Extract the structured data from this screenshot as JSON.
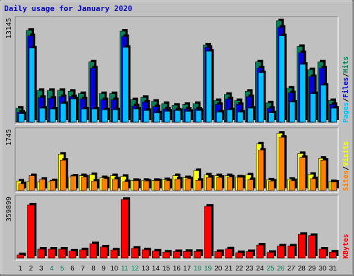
{
  "title": "Daily usage for January 2020",
  "colors": {
    "background": "#c0c0c0",
    "panel": "#c0c0c0",
    "hits": "#00805c",
    "files": "#0000d8",
    "pages": "#00c0ff",
    "visits": "#ffff00",
    "sites": "#ff8000",
    "kbytes": "#ff0000",
    "weekend_day": "#00805c",
    "weekday": "#000000",
    "title": "#0000c0"
  },
  "legend": {
    "top": [
      {
        "label": "Pages",
        "color": "#00c0ff"
      },
      {
        "label": "/",
        "color": "#000000"
      },
      {
        "label": "Files",
        "color": "#0000d8"
      },
      {
        "label": "/",
        "color": "#000000"
      },
      {
        "label": "Hits",
        "color": "#00805c"
      }
    ],
    "middle": [
      {
        "label": "Sites",
        "color": "#ff8000"
      },
      {
        "label": "/",
        "color": "#000000"
      },
      {
        "label": "Visits",
        "color": "#ffff00"
      }
    ],
    "bottom": [
      {
        "label": "KBytes",
        "color": "#ff0000"
      }
    ]
  },
  "chart_data": [
    {
      "type": "bar",
      "panel": "top",
      "y_max_label": "13145",
      "ylim": [
        0,
        13145
      ],
      "categories": [
        "1",
        "2",
        "3",
        "4",
        "5",
        "6",
        "7",
        "8",
        "9",
        "10",
        "11",
        "12",
        "13",
        "14",
        "15",
        "16",
        "17",
        "18",
        "19",
        "20",
        "21",
        "22",
        "23",
        "24",
        "25",
        "26",
        "27",
        "28",
        "29",
        "30",
        "31"
      ],
      "series": [
        {
          "name": "Hits",
          "values": [
            1800,
            11900,
            4100,
            4100,
            4100,
            4000,
            3700,
            7800,
            3700,
            3700,
            11800,
            2900,
            3200,
            2700,
            2400,
            2200,
            2300,
            2400,
            10000,
            2800,
            3600,
            2800,
            4000,
            7800,
            2500,
            13145,
            4400,
            9800,
            6800,
            7800,
            2800
          ]
        },
        {
          "name": "Files",
          "values": [
            1300,
            11200,
            3200,
            3100,
            3300,
            3300,
            3000,
            7000,
            2900,
            2900,
            11100,
            2100,
            2600,
            2000,
            1700,
            1600,
            1700,
            1700,
            9700,
            2300,
            3000,
            2300,
            3300,
            7000,
            1800,
            12300,
            3800,
            9000,
            5900,
            7000,
            2300
          ]
        },
        {
          "name": "Pages",
          "values": [
            1100,
            9600,
            1800,
            1700,
            2400,
            3000,
            1700,
            1700,
            1600,
            1600,
            9700,
            1700,
            1500,
            1200,
            1400,
            1500,
            1400,
            1500,
            9200,
            1300,
            1600,
            1300,
            1800,
            6400,
            1200,
            11200,
            2600,
            7500,
            3700,
            4800,
            1800
          ]
        }
      ]
    },
    {
      "type": "bar",
      "panel": "middle",
      "y_max_label": "1745",
      "ylim": [
        0,
        1745
      ],
      "categories": [
        "1",
        "2",
        "3",
        "4",
        "5",
        "6",
        "7",
        "8",
        "9",
        "10",
        "11",
        "12",
        "13",
        "14",
        "15",
        "16",
        "17",
        "18",
        "19",
        "20",
        "21",
        "22",
        "23",
        "24",
        "25",
        "26",
        "27",
        "28",
        "29",
        "30",
        "31"
      ],
      "series": [
        {
          "name": "Visits",
          "values": [
            280,
            260,
            250,
            250,
            1080,
            400,
            440,
            470,
            380,
            440,
            420,
            300,
            300,
            300,
            320,
            440,
            380,
            590,
            460,
            440,
            440,
            400,
            460,
            1380,
            310,
            1700,
            330,
            1100,
            480,
            960,
            260
          ]
        },
        {
          "name": "Sites",
          "values": [
            200,
            440,
            330,
            290,
            900,
            430,
            400,
            280,
            350,
            340,
            260,
            290,
            280,
            290,
            290,
            340,
            350,
            300,
            390,
            390,
            400,
            390,
            320,
            1200,
            280,
            1580,
            290,
            980,
            350,
            900,
            250
          ]
        }
      ]
    },
    {
      "type": "bar",
      "panel": "bottom",
      "y_max_label": "359899",
      "ylim": [
        0,
        359899
      ],
      "categories": [
        "1",
        "2",
        "3",
        "4",
        "5",
        "6",
        "7",
        "8",
        "9",
        "10",
        "11",
        "12",
        "13",
        "14",
        "15",
        "16",
        "17",
        "18",
        "19",
        "20",
        "21",
        "22",
        "23",
        "24",
        "25",
        "26",
        "27",
        "28",
        "29",
        "30",
        "31"
      ],
      "series": [
        {
          "name": "KBytes",
          "values": [
            20000,
            326000,
            55000,
            55000,
            55000,
            43000,
            51000,
            88000,
            68000,
            50000,
            359899,
            60000,
            51000,
            43000,
            37000,
            40000,
            41000,
            41000,
            318000,
            40000,
            56000,
            33000,
            40000,
            80000,
            35000,
            74000,
            74000,
            146000,
            138000,
            55000,
            37000
          ]
        }
      ]
    }
  ],
  "days": [
    {
      "label": "1",
      "weekend": false
    },
    {
      "label": "2",
      "weekend": false
    },
    {
      "label": "3",
      "weekend": false
    },
    {
      "label": "4",
      "weekend": true
    },
    {
      "label": "5",
      "weekend": true
    },
    {
      "label": "6",
      "weekend": false
    },
    {
      "label": "7",
      "weekend": false
    },
    {
      "label": "8",
      "weekend": false
    },
    {
      "label": "9",
      "weekend": false
    },
    {
      "label": "10",
      "weekend": false
    },
    {
      "label": "11",
      "weekend": true
    },
    {
      "label": "12",
      "weekend": true
    },
    {
      "label": "13",
      "weekend": false
    },
    {
      "label": "14",
      "weekend": false
    },
    {
      "label": "15",
      "weekend": false
    },
    {
      "label": "16",
      "weekend": false
    },
    {
      "label": "17",
      "weekend": false
    },
    {
      "label": "18",
      "weekend": true
    },
    {
      "label": "19",
      "weekend": true
    },
    {
      "label": "20",
      "weekend": false
    },
    {
      "label": "21",
      "weekend": false
    },
    {
      "label": "22",
      "weekend": false
    },
    {
      "label": "23",
      "weekend": false
    },
    {
      "label": "24",
      "weekend": false
    },
    {
      "label": "25",
      "weekend": true
    },
    {
      "label": "26",
      "weekend": true
    },
    {
      "label": "27",
      "weekend": false
    },
    {
      "label": "28",
      "weekend": false
    },
    {
      "label": "29",
      "weekend": false
    },
    {
      "label": "30",
      "weekend": false
    },
    {
      "label": "31",
      "weekend": false
    }
  ]
}
